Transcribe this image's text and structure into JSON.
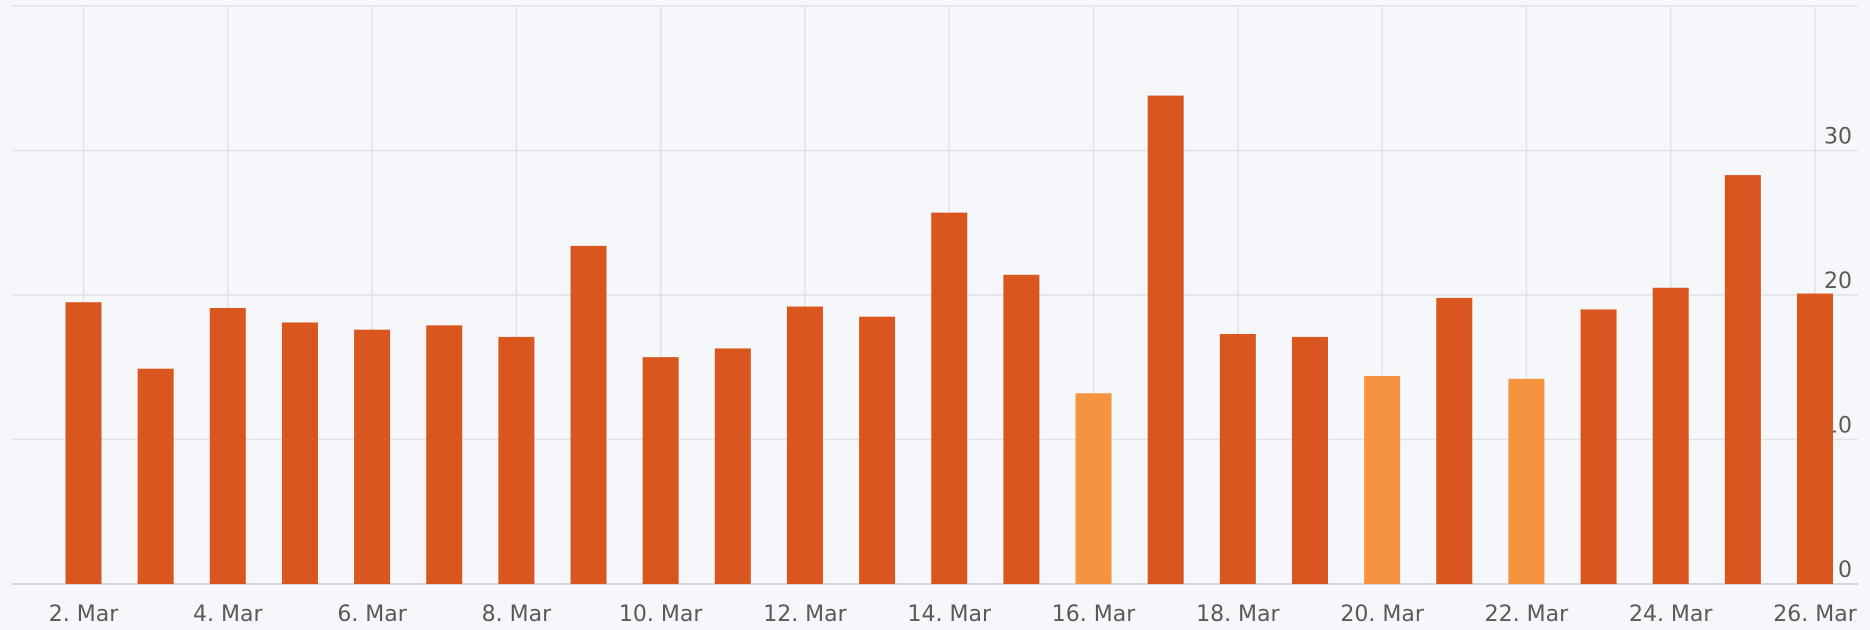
{
  "chart_data": {
    "type": "bar",
    "categories": [
      "2. Mar",
      null,
      "4. Mar",
      null,
      "6. Mar",
      null,
      "8. Mar",
      null,
      "10. Mar",
      null,
      "12. Mar",
      null,
      "14. Mar",
      null,
      "16. Mar",
      null,
      "18. Mar",
      null,
      "20. Mar",
      null,
      "22. Mar",
      null,
      "24. Mar",
      null,
      "26. Mar"
    ],
    "values": [
      19.5,
      14.9,
      19.1,
      18.1,
      17.6,
      17.9,
      17.1,
      23.4,
      15.7,
      16.3,
      19.2,
      18.5,
      25.7,
      21.4,
      13.2,
      33.8,
      17.3,
      17.1,
      14.4,
      19.8,
      14.2,
      19.0,
      20.5,
      28.3,
      20.1
    ],
    "colors": [
      "#d9571f",
      "#d9571f",
      "#d9571f",
      "#d9571f",
      "#d9571f",
      "#d9571f",
      "#d9571f",
      "#d9571f",
      "#d9571f",
      "#d9571f",
      "#d9571f",
      "#d9571f",
      "#d9571f",
      "#d9571f",
      "#f59340",
      "#d9571f",
      "#d9571f",
      "#d9571f",
      "#f59340",
      "#d9571f",
      "#f59340",
      "#d9571f",
      "#d9571f",
      "#d9571f",
      "#d9571f"
    ],
    "ylim": [
      0,
      40
    ],
    "yticks": [
      0,
      10,
      20,
      30
    ],
    "grid": true,
    "y_axis_side": "right"
  }
}
